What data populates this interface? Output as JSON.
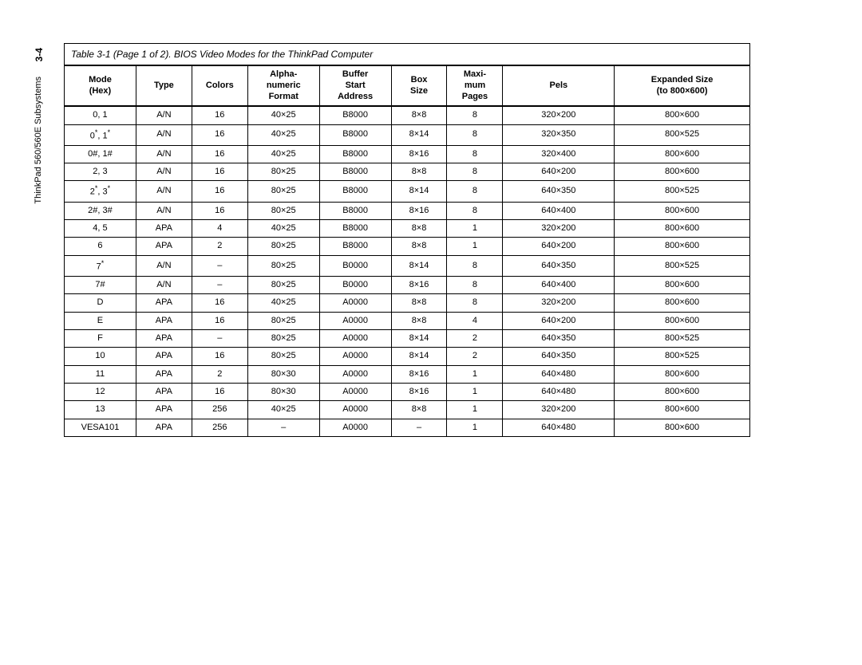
{
  "page_number": "3-4",
  "side_label": "ThinkPad 560/560E Subsystems",
  "table": {
    "caption_prefix": "Table",
    "caption_body": " 3-1 (Page 1 of 2). BIOS Video Modes for the ThinkPad Computer",
    "columns": [
      "Mode\n(Hex)",
      "Type",
      "Colors",
      "Alpha-\nnumeric\nFormat",
      "Buffer\nStart\nAddress",
      "Box\nSize",
      "Maxi-\nmum\nPages",
      "Pels",
      "Expanded Size\n(to 800×600)"
    ],
    "rows": [
      [
        "0, 1",
        "A/N",
        "16",
        "40×25",
        "B8000",
        "8×8",
        "8",
        "320×200",
        "800×600"
      ],
      [
        "0*, 1*",
        "A/N",
        "16",
        "40×25",
        "B8000",
        "8×14",
        "8",
        "320×350",
        "800×525"
      ],
      [
        "0#, 1#",
        "A/N",
        "16",
        "40×25",
        "B8000",
        "8×16",
        "8",
        "320×400",
        "800×600"
      ],
      [
        "2, 3",
        "A/N",
        "16",
        "80×25",
        "B8000",
        "8×8",
        "8",
        "640×200",
        "800×600"
      ],
      [
        "2*, 3*",
        "A/N",
        "16",
        "80×25",
        "B8000",
        "8×14",
        "8",
        "640×350",
        "800×525"
      ],
      [
        "2#, 3#",
        "A/N",
        "16",
        "80×25",
        "B8000",
        "8×16",
        "8",
        "640×400",
        "800×600"
      ],
      [
        "4, 5",
        "APA",
        "4",
        "40×25",
        "B8000",
        "8×8",
        "1",
        "320×200",
        "800×600"
      ],
      [
        "6",
        "APA",
        "2",
        "80×25",
        "B8000",
        "8×8",
        "1",
        "640×200",
        "800×600"
      ],
      [
        "7*",
        "A/N",
        "–",
        "80×25",
        "B0000",
        "8×14",
        "8",
        "640×350",
        "800×525"
      ],
      [
        "7#",
        "A/N",
        "–",
        "80×25",
        "B0000",
        "8×16",
        "8",
        "640×400",
        "800×600"
      ],
      [
        "D",
        "APA",
        "16",
        "40×25",
        "A0000",
        "8×8",
        "8",
        "320×200",
        "800×600"
      ],
      [
        "E",
        "APA",
        "16",
        "80×25",
        "A0000",
        "8×8",
        "4",
        "640×200",
        "800×600"
      ],
      [
        "F",
        "APA",
        "–",
        "80×25",
        "A0000",
        "8×14",
        "2",
        "640×350",
        "800×525"
      ],
      [
        "10",
        "APA",
        "16",
        "80×25",
        "A0000",
        "8×14",
        "2",
        "640×350",
        "800×525"
      ],
      [
        "11",
        "APA",
        "2",
        "80×30",
        "A0000",
        "8×16",
        "1",
        "640×480",
        "800×600"
      ],
      [
        "12",
        "APA",
        "16",
        "80×30",
        "A0000",
        "8×16",
        "1",
        "640×480",
        "800×600"
      ],
      [
        "13",
        "APA",
        "256",
        "40×25",
        "A0000",
        "8×8",
        "1",
        "320×200",
        "800×600"
      ],
      [
        "VESA101",
        "APA",
        "256",
        "–",
        "A0000",
        "–",
        "1",
        "640×480",
        "800×600"
      ]
    ],
    "col_widths": [
      "90px",
      "70px",
      "70px",
      "90px",
      "90px",
      "70px",
      "70px",
      "140px",
      "170px"
    ]
  }
}
